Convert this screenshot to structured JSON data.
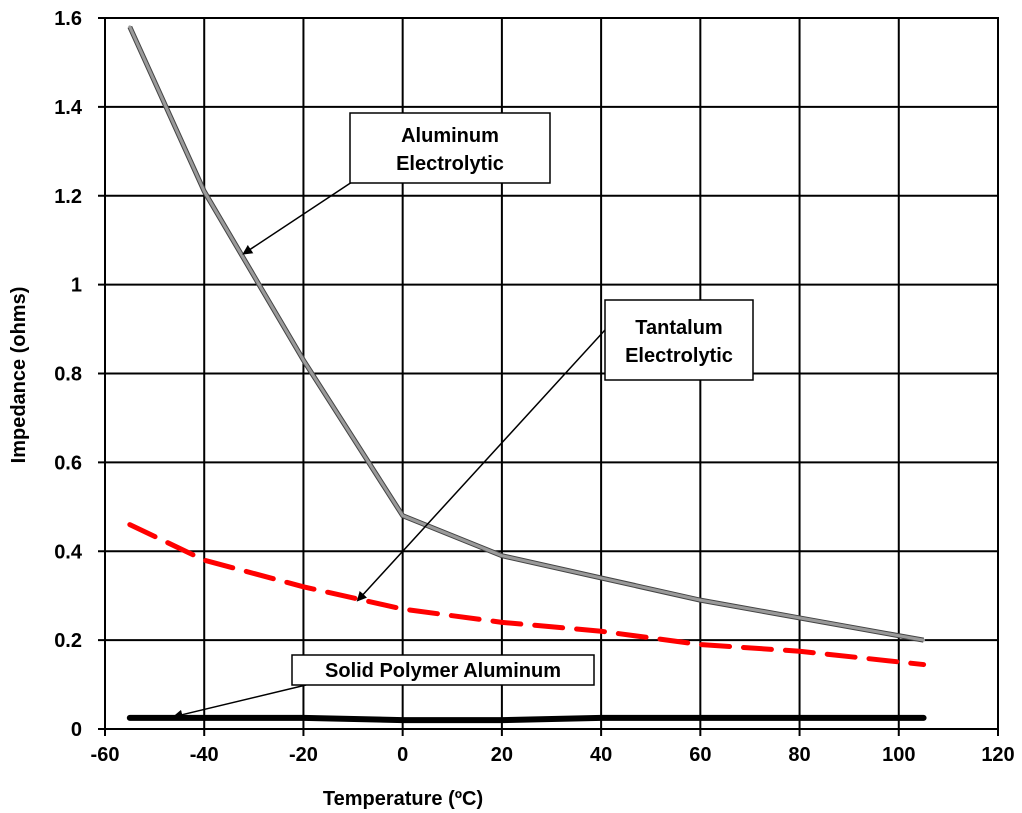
{
  "chart_data": {
    "type": "line",
    "title": "",
    "xlabel": "Temperature (ºC)",
    "ylabel": "Impedance (ohms)",
    "xlim": [
      -60,
      120
    ],
    "ylim": [
      0,
      1.6
    ],
    "xticks": [
      -60,
      -40,
      -20,
      0,
      20,
      40,
      60,
      80,
      100,
      120
    ],
    "yticks": [
      0,
      0.2,
      0.4,
      0.6,
      0.8,
      1,
      1.2,
      1.4,
      1.6
    ],
    "ytick_labels": [
      "0",
      "0.2",
      "0.4",
      "0.6",
      "0.8",
      "1",
      "1.2",
      "1.4",
      "1.6"
    ],
    "grid": true,
    "legend": "none",
    "series": [
      {
        "name": "Aluminum Electrolytic",
        "color": "#8a8a8a",
        "style": "solid",
        "x": [
          -55,
          -40,
          -20,
          0,
          20,
          40,
          60,
          80,
          105
        ],
        "y": [
          1.58,
          1.21,
          0.83,
          0.48,
          0.39,
          0.34,
          0.29,
          0.25,
          0.2
        ]
      },
      {
        "name": "Tantalum Electrolytic",
        "color": "#ff0000",
        "style": "dashed",
        "x": [
          -55,
          -40,
          -20,
          0,
          20,
          40,
          60,
          80,
          105
        ],
        "y": [
          0.46,
          0.38,
          0.32,
          0.27,
          0.24,
          0.22,
          0.19,
          0.175,
          0.145
        ]
      },
      {
        "name": "Solid Polymer Aluminum",
        "color": "#000000",
        "style": "solid",
        "x": [
          -55,
          -40,
          -20,
          0,
          20,
          40,
          60,
          80,
          105
        ],
        "y": [
          0.025,
          0.025,
          0.025,
          0.02,
          0.02,
          0.025,
          0.025,
          0.025,
          0.025
        ]
      }
    ],
    "annotations": [
      {
        "lines": [
          "Aluminum",
          "Electrolytic"
        ],
        "arrow_to": {
          "x": -32,
          "y": 1.07
        }
      },
      {
        "lines": [
          "Tantalum",
          "Electrolytic"
        ],
        "arrow_to": {
          "x": -9,
          "y": 0.29
        }
      },
      {
        "lines": [
          "Solid Polymer Aluminum"
        ],
        "arrow_to": {
          "x": -46,
          "y": 0.028
        }
      }
    ]
  }
}
